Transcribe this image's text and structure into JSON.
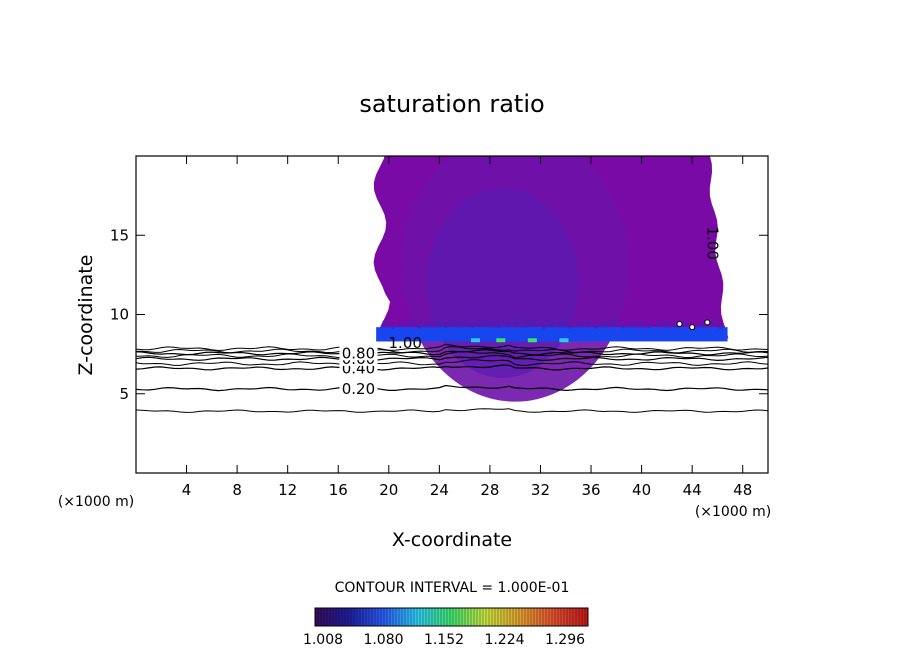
{
  "chart_data": {
    "type": "heatmap",
    "title": "saturation ratio",
    "xlabel": "X-coordinate",
    "ylabel": "Z-coordinate",
    "x_unit": "(×1000 m)",
    "y_unit": "(×1000 m)",
    "xlim": [
      0,
      50
    ],
    "ylim": [
      0,
      20
    ],
    "x_ticks": [
      4,
      8,
      12,
      16,
      20,
      24,
      28,
      32,
      36,
      40,
      44,
      48
    ],
    "y_ticks": [
      5,
      10,
      15
    ],
    "contour_interval_text": "CONTOUR INTERVAL = 1.000E-01",
    "contour_levels": [
      {
        "value": 0.2,
        "label": "0.20",
        "z": 5.3
      },
      {
        "value": 0.4,
        "label": "0.40",
        "z": 6.6
      },
      {
        "value": 0.6,
        "label": "0.60",
        "z": 7.2
      },
      {
        "value": 0.8,
        "label": "0.80",
        "z": 7.55
      },
      {
        "value": 1.0,
        "label": "1.00",
        "z": 8.2
      }
    ],
    "base_contour_z": 3.9,
    "extra_contours_z": [
      6.9,
      7.4,
      7.7,
      7.85
    ],
    "cloud_region": {
      "x_left": 19,
      "x_right": 46.8,
      "z_bottom": 8.3,
      "z_top": 20
    },
    "cloud_label": {
      "text": "1.00",
      "x": 45.2,
      "z": 14.5
    },
    "colorbar": {
      "labels": [
        "1.008",
        "1.080",
        "1.152",
        "1.224",
        "1.296"
      ],
      "colors": [
        "#3a0a5a",
        "#1e1e9e",
        "#2a5cf0",
        "#30c8f0",
        "#40e070",
        "#c8e040",
        "#e0a030",
        "#e05030",
        "#c01818"
      ]
    },
    "colors": {
      "cloud": "#7a0aa6",
      "cloud_inner": "#5a1ab0",
      "base_band": "#1846ee",
      "frame": "#000000"
    }
  }
}
